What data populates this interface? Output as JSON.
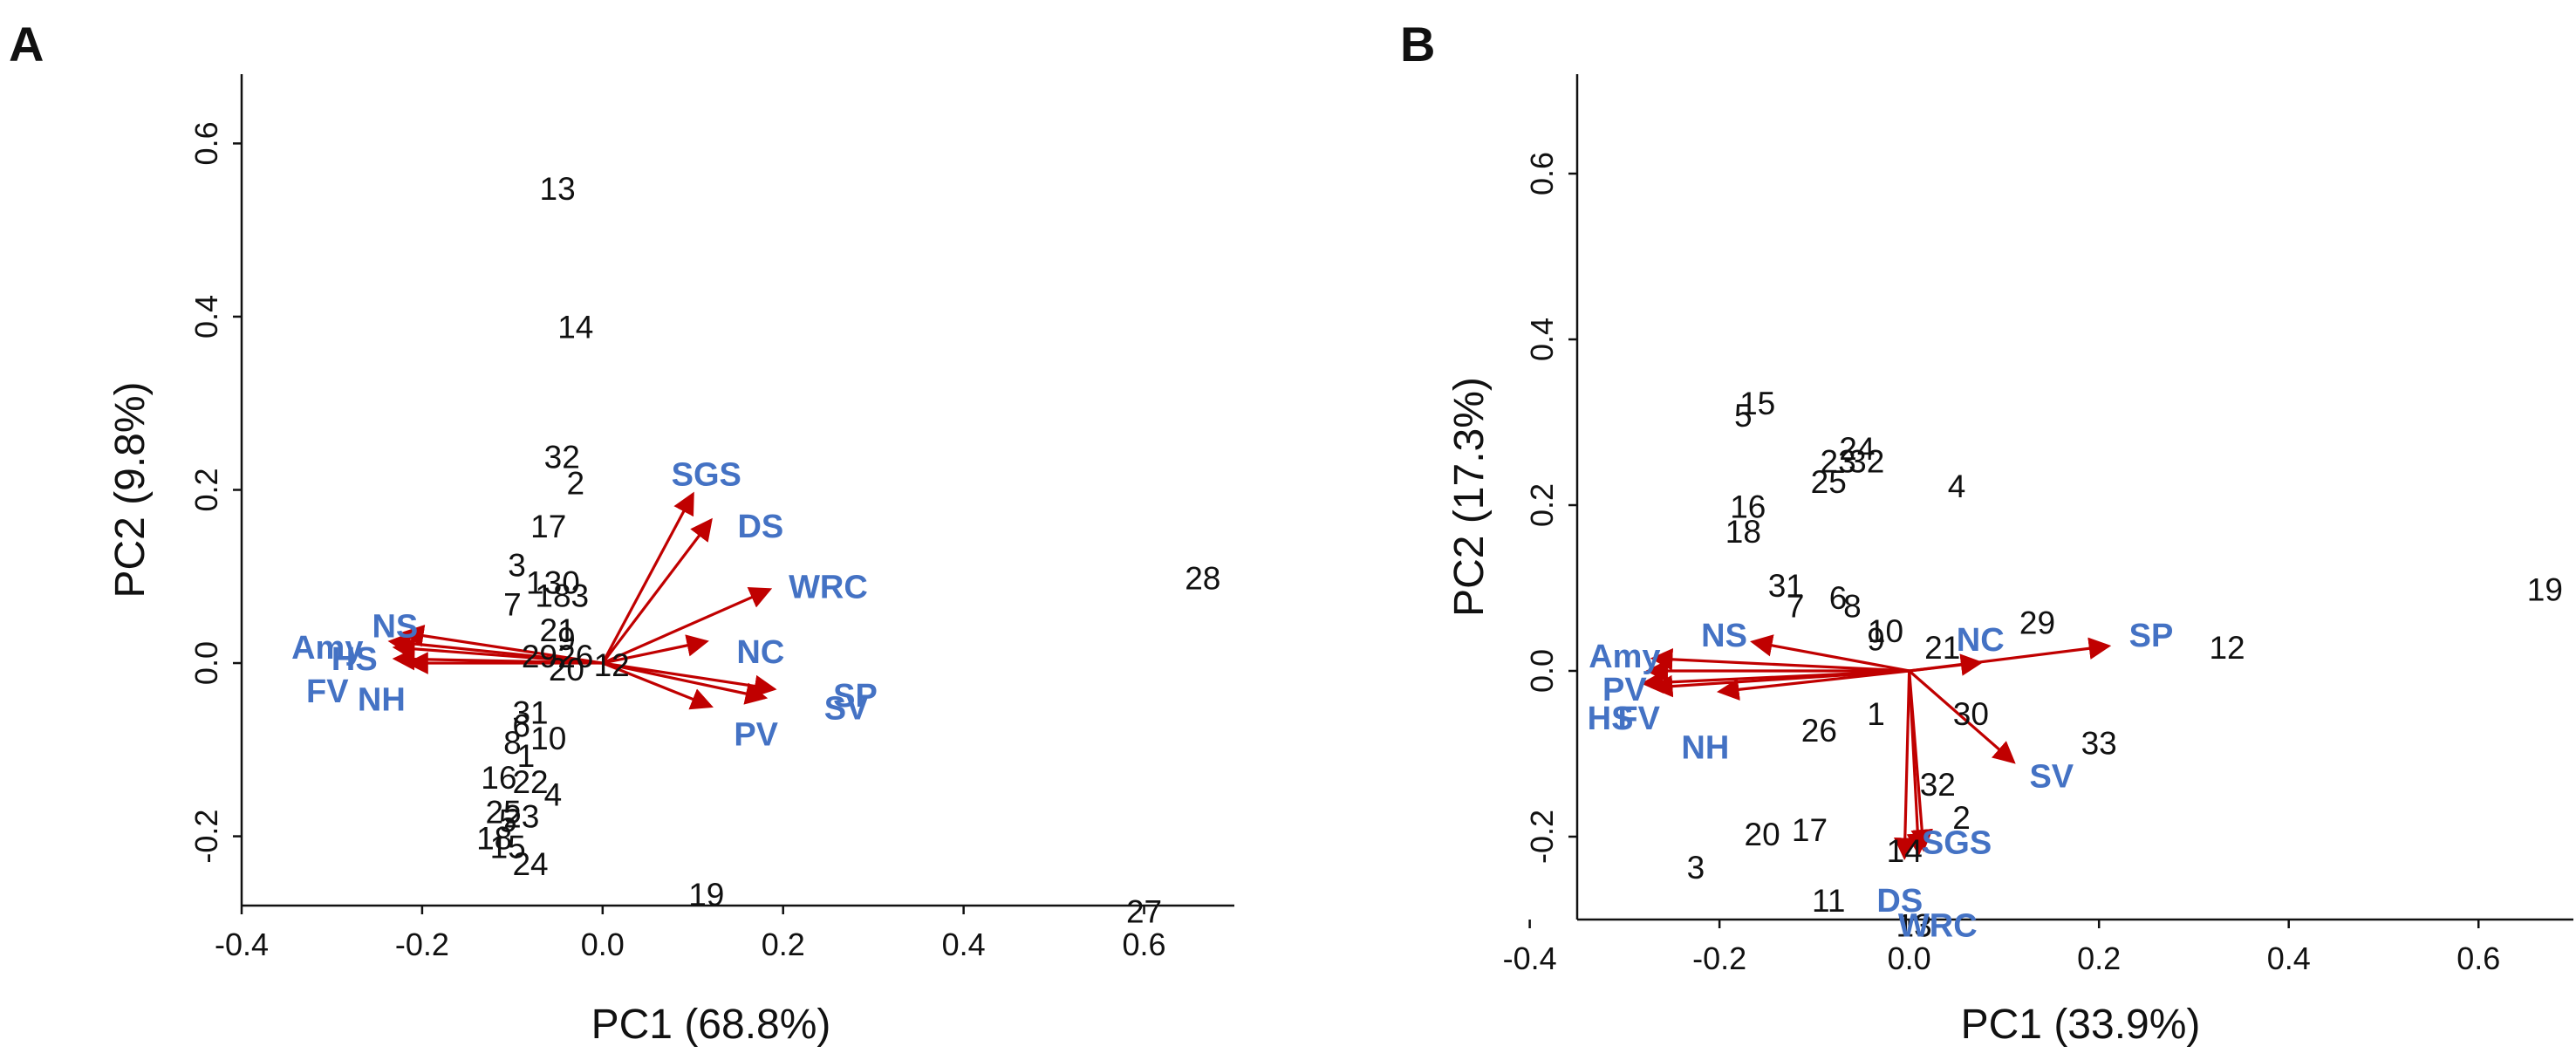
{
  "colors": {
    "arrow": "#C00000",
    "variable_label": "#4472C4",
    "text": "#111111"
  },
  "chart_data": [
    {
      "type": "scatter",
      "panel": "A",
      "xlabel": "PC1 (68.8%)",
      "ylabel": "PC2 (9.8%)",
      "xlim": [
        -0.4,
        0.7
      ],
      "ylim": [
        -0.28,
        0.68
      ],
      "x_ticks": [
        "-0.4",
        "-0.2",
        "0.0",
        "0.2",
        "0.4",
        "0.6"
      ],
      "y_ticks": [
        "-0.2",
        "0.0",
        "0.2",
        "0.4",
        "0.6"
      ],
      "observations": [
        {
          "label": "13",
          "x": -0.05,
          "y": 0.545
        },
        {
          "label": "14",
          "x": -0.03,
          "y": 0.385
        },
        {
          "label": "32",
          "x": -0.045,
          "y": 0.235
        },
        {
          "label": "2",
          "x": -0.03,
          "y": 0.205
        },
        {
          "label": "17",
          "x": -0.06,
          "y": 0.155
        },
        {
          "label": "3",
          "x": -0.095,
          "y": 0.11
        },
        {
          "label": "130",
          "x": -0.055,
          "y": 0.09
        },
        {
          "label": "7",
          "x": -0.1,
          "y": 0.065
        },
        {
          "label": "183",
          "x": -0.045,
          "y": 0.075
        },
        {
          "label": "21",
          "x": -0.05,
          "y": 0.035
        },
        {
          "label": "9",
          "x": -0.04,
          "y": 0.025
        },
        {
          "label": "29",
          "x": -0.07,
          "y": 0.005
        },
        {
          "label": "26",
          "x": -0.03,
          "y": 0.005
        },
        {
          "label": "20",
          "x": -0.04,
          "y": -0.01
        },
        {
          "label": "12",
          "x": 0.01,
          "y": -0.005
        },
        {
          "label": "31",
          "x": -0.08,
          "y": -0.06
        },
        {
          "label": "6",
          "x": -0.09,
          "y": -0.075
        },
        {
          "label": "8",
          "x": -0.1,
          "y": -0.095
        },
        {
          "label": "10",
          "x": -0.06,
          "y": -0.09
        },
        {
          "label": "1",
          "x": -0.085,
          "y": -0.11
        },
        {
          "label": "16",
          "x": -0.115,
          "y": -0.135
        },
        {
          "label": "22",
          "x": -0.08,
          "y": -0.14
        },
        {
          "label": "4",
          "x": -0.055,
          "y": -0.155
        },
        {
          "label": "25",
          "x": -0.11,
          "y": -0.175
        },
        {
          "label": "5",
          "x": -0.105,
          "y": -0.185
        },
        {
          "label": "23",
          "x": -0.09,
          "y": -0.18
        },
        {
          "label": "18",
          "x": -0.12,
          "y": -0.205
        },
        {
          "label": "15",
          "x": -0.105,
          "y": -0.215
        },
        {
          "label": "24",
          "x": -0.08,
          "y": -0.235
        },
        {
          "label": "19",
          "x": 0.115,
          "y": -0.27
        },
        {
          "label": "28",
          "x": 0.665,
          "y": 0.095
        },
        {
          "label": "27",
          "x": 0.6,
          "y": -0.29
        }
      ],
      "variables": [
        {
          "name": "SGS",
          "x": 0.1,
          "y": 0.195,
          "label_x": 0.115,
          "label_y": 0.215
        },
        {
          "name": "DS",
          "x": 0.12,
          "y": 0.165,
          "label_x": 0.175,
          "label_y": 0.155
        },
        {
          "name": "WRC",
          "x": 0.185,
          "y": 0.085,
          "label_x": 0.25,
          "label_y": 0.085
        },
        {
          "name": "NC",
          "x": 0.115,
          "y": 0.025,
          "label_x": 0.175,
          "label_y": 0.01
        },
        {
          "name": "SP",
          "x": 0.19,
          "y": -0.03,
          "label_x": 0.28,
          "label_y": -0.04
        },
        {
          "name": "SV",
          "x": 0.18,
          "y": -0.04,
          "label_x": 0.27,
          "label_y": -0.055
        },
        {
          "name": "PV",
          "x": 0.12,
          "y": -0.05,
          "label_x": 0.17,
          "label_y": -0.085
        },
        {
          "name": "NS",
          "x": -0.22,
          "y": 0.035,
          "label_x": -0.23,
          "label_y": 0.04
        },
        {
          "name": "Amy",
          "x": -0.235,
          "y": 0.025,
          "label_x": -0.305,
          "label_y": 0.015
        },
        {
          "name": "HS",
          "x": -0.23,
          "y": 0.018,
          "label_x": -0.275,
          "label_y": 0.002
        },
        {
          "name": "FV",
          "x": -0.23,
          "y": 0.005,
          "label_x": -0.305,
          "label_y": -0.035
        },
        {
          "name": "NH",
          "x": -0.215,
          "y": 0.0,
          "label_x": -0.245,
          "label_y": -0.045
        }
      ]
    },
    {
      "type": "scatter",
      "panel": "B",
      "xlabel": "PC1 (33.9%)",
      "ylabel": "PC2 (17.3%)",
      "xlim": [
        -0.35,
        0.7
      ],
      "ylim": [
        -0.3,
        0.72
      ],
      "x_ticks": [
        "-0.4",
        "-0.2",
        "0.0",
        "0.2",
        "0.4",
        "0.6"
      ],
      "y_ticks": [
        "-0.2",
        "0.0",
        "0.2",
        "0.4",
        "0.6"
      ],
      "observations": [
        {
          "label": "15",
          "x": -0.16,
          "y": 0.32
        },
        {
          "label": "5",
          "x": -0.175,
          "y": 0.305
        },
        {
          "label": "24",
          "x": -0.055,
          "y": 0.265
        },
        {
          "label": "23",
          "x": -0.075,
          "y": 0.25
        },
        {
          "label": "32",
          "x": -0.045,
          "y": 0.25
        },
        {
          "label": "25",
          "x": -0.085,
          "y": 0.225
        },
        {
          "label": "4",
          "x": 0.05,
          "y": 0.22
        },
        {
          "label": "16",
          "x": -0.17,
          "y": 0.195
        },
        {
          "label": "18",
          "x": -0.175,
          "y": 0.165
        },
        {
          "label": "31",
          "x": -0.13,
          "y": 0.1
        },
        {
          "label": "7",
          "x": -0.12,
          "y": 0.075
        },
        {
          "label": "6",
          "x": -0.075,
          "y": 0.085
        },
        {
          "label": "8",
          "x": -0.06,
          "y": 0.075
        },
        {
          "label": "10",
          "x": -0.025,
          "y": 0.045
        },
        {
          "label": "9",
          "x": -0.035,
          "y": 0.035
        },
        {
          "label": "21",
          "x": 0.035,
          "y": 0.025
        },
        {
          "label": "29",
          "x": 0.135,
          "y": 0.055
        },
        {
          "label": "12",
          "x": 0.335,
          "y": 0.025
        },
        {
          "label": "19",
          "x": 0.67,
          "y": 0.095
        },
        {
          "label": "26",
          "x": -0.095,
          "y": -0.075
        },
        {
          "label": "1",
          "x": -0.035,
          "y": -0.055
        },
        {
          "label": "30",
          "x": 0.065,
          "y": -0.055
        },
        {
          "label": "33",
          "x": 0.2,
          "y": -0.09
        },
        {
          "label": "32",
          "x": 0.03,
          "y": -0.14
        },
        {
          "label": "2",
          "x": 0.055,
          "y": -0.18
        },
        {
          "label": "20",
          "x": -0.155,
          "y": -0.2
        },
        {
          "label": "17",
          "x": -0.105,
          "y": -0.195
        },
        {
          "label": "14",
          "x": -0.005,
          "y": -0.22
        },
        {
          "label": "3",
          "x": -0.225,
          "y": -0.24
        },
        {
          "label": "11",
          "x": -0.085,
          "y": -0.28
        },
        {
          "label": "13",
          "x": 0.005,
          "y": -0.31
        }
      ],
      "variables": [
        {
          "name": "SP",
          "x": 0.21,
          "y": 0.03,
          "label_x": 0.255,
          "label_y": 0.04
        },
        {
          "name": "NC",
          "x": 0.075,
          "y": 0.01,
          "label_x": 0.075,
          "label_y": 0.035
        },
        {
          "name": "SV",
          "x": 0.11,
          "y": -0.11,
          "label_x": 0.15,
          "label_y": -0.13
        },
        {
          "name": "SGS",
          "x": 0.015,
          "y": -0.215,
          "label_x": 0.05,
          "label_y": -0.21
        },
        {
          "name": "DS",
          "x": 0.01,
          "y": -0.22,
          "label_x": -0.01,
          "label_y": -0.28
        },
        {
          "name": "WRC",
          "x": -0.005,
          "y": -0.225,
          "label_x": 0.03,
          "label_y": -0.31
        },
        {
          "name": "NS",
          "x": -0.165,
          "y": 0.035,
          "label_x": -0.195,
          "label_y": 0.04
        },
        {
          "name": "Amy",
          "x": -0.27,
          "y": 0.015,
          "label_x": -0.3,
          "label_y": 0.015
        },
        {
          "name": "PV",
          "x": -0.275,
          "y": 0.0,
          "label_x": -0.3,
          "label_y": -0.025
        },
        {
          "name": "HS",
          "x": -0.28,
          "y": -0.015,
          "label_x": -0.315,
          "label_y": -0.06
        },
        {
          "name": "FV",
          "x": -0.27,
          "y": -0.02,
          "label_x": -0.285,
          "label_y": -0.06
        },
        {
          "name": "NH",
          "x": -0.2,
          "y": -0.025,
          "label_x": -0.215,
          "label_y": -0.095
        }
      ]
    }
  ]
}
